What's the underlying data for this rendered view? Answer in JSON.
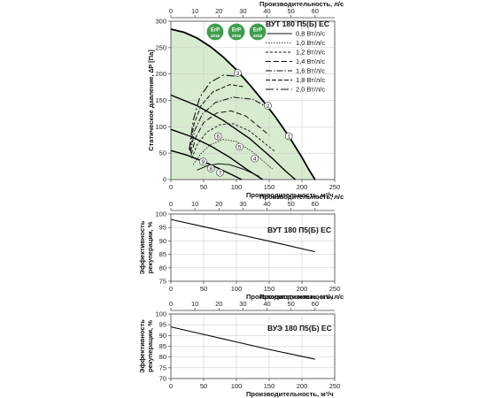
{
  "chart_data": [
    {
      "type": "line",
      "title": "ВУТ 180 П5(Б) ЕС",
      "xlabel": "Производительность, м³/ч",
      "x2label": "Производительность, л/с",
      "ylabel": "Статическое давление, ∆P [Па]",
      "xlim": [
        0,
        250
      ],
      "ylim": [
        0,
        300
      ],
      "x_ticks": [
        0,
        50,
        100,
        150,
        200,
        250
      ],
      "x2_ticks": [
        0,
        10,
        20,
        30,
        40,
        50,
        60
      ],
      "y_ticks": [
        0,
        50,
        100,
        150,
        200,
        250,
        300
      ],
      "x_tick_labels": [
        "0",
        "50",
        "100",
        "150",
        "200",
        "250"
      ],
      "x2_tick_labels": [
        "0",
        "10",
        "20",
        "30",
        "40",
        "50",
        "60"
      ],
      "y_tick_labels": [
        "0",
        "50",
        "100",
        "150",
        "200",
        "250",
        "300"
      ],
      "badges": [
        "ErP",
        "ErP",
        "ErP"
      ],
      "badge_years": [
        "2016",
        "2016",
        "2018"
      ],
      "envelope": {
        "x": [
          0,
          20,
          40,
          60,
          80,
          100,
          120,
          140,
          160,
          180,
          200,
          210,
          220
        ],
        "y": [
          285,
          279,
          268,
          252,
          232,
          208,
          180,
          150,
          118,
          82,
          42,
          20,
          0
        ]
      },
      "fan_curves": [
        {
          "x": [
            0,
            40,
            80,
            120,
            155,
            175,
            190
          ],
          "y": [
            160,
            140,
            112,
            78,
            40,
            16,
            0
          ]
        },
        {
          "x": [
            0,
            30,
            60,
            90,
            115,
            130,
            140
          ],
          "y": [
            95,
            82,
            64,
            42,
            20,
            8,
            0
          ]
        },
        {
          "x": [
            0,
            25,
            50,
            75,
            95,
            108
          ],
          "y": [
            55,
            46,
            34,
            20,
            8,
            0
          ]
        }
      ],
      "power_legend": [
        "0,8 Вт/л/с",
        "1,0 Вт/л/с",
        "1,2 Вт/л/с",
        "1,4 Вт/л/с",
        "1,6 Вт/л/с",
        "1,8 Вт/л/с",
        "2,0 Вт/л/с"
      ],
      "power_curves": [
        {
          "name": "0,8 Вт/л/с",
          "x": [
            40,
            55,
            72,
            90,
            110,
            135
          ],
          "y": [
            18,
            26,
            30,
            28,
            20,
            6
          ]
        },
        {
          "name": "1,0 Вт/л/с",
          "x": [
            34,
            45,
            60,
            80,
            100,
            125,
            155
          ],
          "y": [
            28,
            48,
            66,
            76,
            72,
            52,
            20
          ]
        },
        {
          "name": "1,2 Вт/л/с",
          "x": [
            32,
            40,
            55,
            75,
            95,
            120,
            160
          ],
          "y": [
            40,
            66,
            90,
            104,
            106,
            92,
            52
          ]
        },
        {
          "name": "1,4 Вт/л/с",
          "x": [
            31,
            38,
            50,
            70,
            92,
            115,
            150
          ],
          "y": [
            46,
            80,
            108,
            126,
            130,
            120,
            84
          ]
        },
        {
          "name": "1,6 Вт/л/с",
          "x": [
            30,
            36,
            48,
            68,
            95,
            125,
            150
          ],
          "y": [
            50,
            92,
            124,
            146,
            156,
            152,
            135
          ]
        },
        {
          "name": "1,8 Вт/л/с",
          "x": [
            29,
            35,
            46,
            64,
            90,
            110
          ],
          "y": [
            54,
            104,
            140,
            166,
            180,
            176
          ]
        },
        {
          "name": "2,0 Вт/л/с",
          "x": [
            28,
            34,
            44,
            60,
            80,
            100
          ],
          "y": [
            56,
            112,
            156,
            184,
            198,
            196
          ]
        }
      ],
      "markers": [
        {
          "label": "1",
          "x": 180,
          "y": 82
        },
        {
          "label": "2",
          "x": 148,
          "y": 140
        },
        {
          "label": "3",
          "x": 102,
          "y": 202
        },
        {
          "label": "4",
          "x": 128,
          "y": 40
        },
        {
          "label": "5",
          "x": 105,
          "y": 62
        },
        {
          "label": "6",
          "x": 72,
          "y": 82
        },
        {
          "label": "7",
          "x": 75,
          "y": 13
        },
        {
          "label": "8",
          "x": 61,
          "y": 21
        },
        {
          "label": "9",
          "x": 49,
          "y": 34
        }
      ],
      "grid": true,
      "legend_position": "top-right"
    },
    {
      "type": "line",
      "title": "ВУТ 180 П5(Б) ЕС",
      "xlabel": "Производительность, м³/ч",
      "x2label": "Производительность, л/с",
      "ylabel": "Эффективность рекуперации, %",
      "xlim": [
        0,
        250
      ],
      "ylim": [
        75,
        100
      ],
      "x_ticks": [
        0,
        50,
        100,
        150,
        200,
        250
      ],
      "x2_ticks": [
        0,
        10,
        20,
        30,
        40,
        50,
        60
      ],
      "y_ticks": [
        75,
        80,
        85,
        90,
        95,
        100
      ],
      "x_tick_labels": [
        "0",
        "50",
        "100",
        "150",
        "200",
        "250"
      ],
      "x2_tick_labels": [
        "0",
        "10",
        "20",
        "30",
        "40",
        "50",
        "60"
      ],
      "y_tick_labels": [
        "75",
        "80",
        "85",
        "90",
        "95",
        "100"
      ],
      "series": [
        {
          "x": [
            0,
            50,
            100,
            150,
            220
          ],
          "y": [
            98,
            95.3,
            92.6,
            89.9,
            86
          ]
        }
      ],
      "grid": true
    },
    {
      "type": "line",
      "title": "ВУЭ 180 П5(Б) ЕС",
      "xlabel": "Производительность, м³/ч",
      "x2label": "Производительность, л/с",
      "ylabel": "Эффективность рекуперации, %",
      "xlim": [
        0,
        250
      ],
      "ylim": [
        70,
        100
      ],
      "x_ticks": [
        0,
        50,
        100,
        150,
        200,
        250
      ],
      "x2_ticks": [
        0,
        10,
        20,
        30,
        40,
        50,
        60
      ],
      "y_ticks": [
        70,
        75,
        80,
        85,
        90,
        95,
        100
      ],
      "x_tick_labels": [
        "0",
        "50",
        "100",
        "150",
        "200",
        "250"
      ],
      "x2_tick_labels": [
        "0",
        "10",
        "20",
        "30",
        "40",
        "50",
        "60"
      ],
      "y_tick_labels": [
        "70",
        "75",
        "80",
        "85",
        "90",
        "95",
        "100"
      ],
      "series": [
        {
          "x": [
            0,
            50,
            100,
            150,
            220
          ],
          "y": [
            94,
            90.5,
            87,
            83.5,
            79
          ]
        }
      ],
      "grid": true
    }
  ],
  "colors": {
    "fill": "#d7ebd0",
    "badge_green": "#3f9e4d",
    "grid": "#c8c8c8",
    "marker_bg": "#ffffff"
  }
}
